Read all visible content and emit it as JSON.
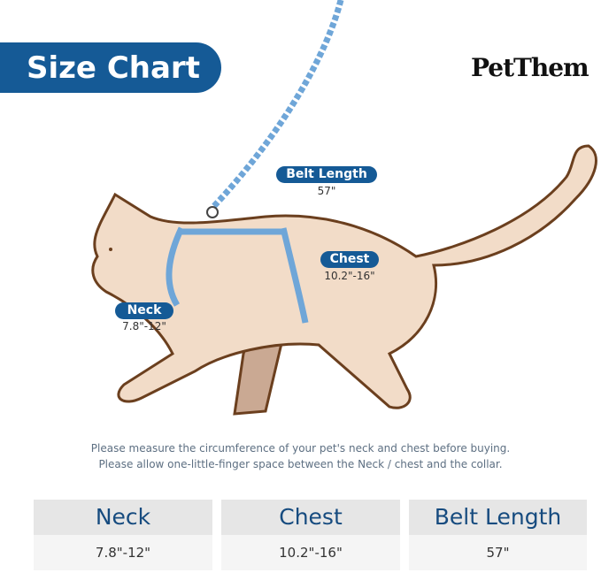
{
  "header": {
    "title": "Size Chart",
    "brand": "PetThem"
  },
  "diagram": {
    "belt": {
      "label": "Belt Length",
      "value": "57\""
    },
    "chest": {
      "label": "Chest",
      "value": "10.2\"-16\""
    },
    "neck": {
      "label": "Neck",
      "value": "7.8\"-12\""
    }
  },
  "notes": [
    "Please measure the circumference of your pet's neck and chest before buying.",
    "Please allow one-little-finger space between the Neck / chest and the collar."
  ],
  "table": {
    "headers": [
      "Neck",
      "Chest",
      "Belt Length"
    ],
    "values": [
      "7.8\"-12\"",
      "10.2\"-16\"",
      "57\""
    ]
  },
  "colors": {
    "accent": "#155a96",
    "cat_fill": "#f2dcc8",
    "cat_outline": "#6b3f1e",
    "leash": "#7fb3e0"
  }
}
